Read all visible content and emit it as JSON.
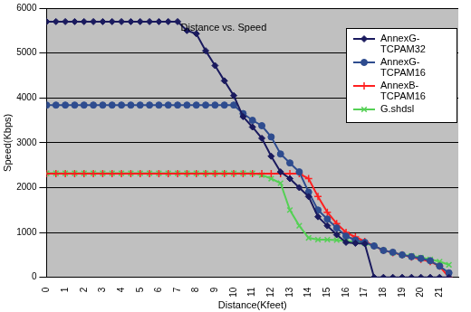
{
  "chart_data": {
    "type": "line",
    "title": "Distance vs. Speed",
    "x_label": "Distance(Kfeet)",
    "y_label": "Speed(Kbps)",
    "x": [
      0,
      0.5,
      1,
      1.5,
      2,
      2.5,
      3,
      3.5,
      4,
      4.5,
      5,
      5.5,
      6,
      6.5,
      7,
      7.5,
      8,
      8.5,
      9,
      9.5,
      10,
      10.5,
      11,
      11.5,
      12,
      12.5,
      13,
      13.5,
      14,
      14.5,
      15,
      15.5,
      16,
      16.5,
      17,
      17.5,
      18,
      18.5,
      19,
      19.5,
      20,
      20.5,
      21,
      21.5
    ],
    "xlim": [
      0,
      22
    ],
    "xticks": [
      0,
      1,
      2,
      3,
      4,
      5,
      6,
      7,
      8,
      9,
      10,
      11,
      12,
      13,
      14,
      15,
      16,
      17,
      18,
      19,
      20,
      21
    ],
    "ylim": [
      0,
      6000
    ],
    "yticks": [
      0,
      1000,
      2000,
      3000,
      4000,
      5000,
      6000
    ],
    "grid": "y",
    "legend": "top-right",
    "series": [
      {
        "name": "AnnexG-TCPAM32",
        "color": "#1a1a5e",
        "marker": "diamond",
        "line_style": "solid",
        "values": [
          5700,
          5700,
          5700,
          5700,
          5700,
          5700,
          5700,
          5700,
          5700,
          5700,
          5700,
          5700,
          5700,
          5700,
          5700,
          5500,
          5430,
          5050,
          4720,
          4380,
          4050,
          3580,
          3350,
          3100,
          2700,
          2350,
          2200,
          2000,
          1800,
          1350,
          1150,
          950,
          780,
          760,
          750,
          0,
          0,
          0,
          0,
          0,
          0,
          0,
          0,
          0
        ]
      },
      {
        "name": "AnnexG-TCPAM16",
        "color": "#2e4c8f",
        "marker": "circle",
        "line_style": "solid",
        "values": [
          3840,
          3840,
          3840,
          3840,
          3840,
          3840,
          3840,
          3840,
          3840,
          3840,
          3840,
          3840,
          3840,
          3840,
          3840,
          3840,
          3840,
          3840,
          3840,
          3840,
          3840,
          3650,
          3500,
          3380,
          3130,
          2750,
          2550,
          2350,
          1900,
          1500,
          1300,
          1100,
          920,
          830,
          780,
          700,
          600,
          560,
          500,
          460,
          420,
          370,
          250,
          100
        ]
      },
      {
        "name": "AnnexB-TCPAM16",
        "color": "#ff2020",
        "marker": "plus",
        "line_style": "solid",
        "values": [
          2310,
          2310,
          2310,
          2310,
          2310,
          2310,
          2310,
          2310,
          2310,
          2310,
          2310,
          2310,
          2310,
          2310,
          2310,
          2310,
          2310,
          2310,
          2310,
          2310,
          2310,
          2310,
          2310,
          2310,
          2310,
          2310,
          2310,
          2310,
          2200,
          1800,
          1450,
          1200,
          1000,
          900,
          800,
          700,
          600,
          550,
          500,
          450,
          400,
          350,
          250,
          0
        ]
      },
      {
        "name": "G.shdsl",
        "color": "#55d055",
        "marker": "x",
        "line_style": "solid",
        "values": [
          2320,
          2320,
          2320,
          2320,
          2320,
          2320,
          2320,
          2320,
          2320,
          2320,
          2320,
          2320,
          2320,
          2320,
          2320,
          2320,
          2320,
          2320,
          2320,
          2320,
          2320,
          2320,
          2320,
          2280,
          2200,
          2100,
          1500,
          1150,
          880,
          840,
          840,
          830,
          810,
          790,
          760,
          700,
          600,
          550,
          500,
          480,
          440,
          400,
          350,
          280
        ]
      }
    ]
  }
}
